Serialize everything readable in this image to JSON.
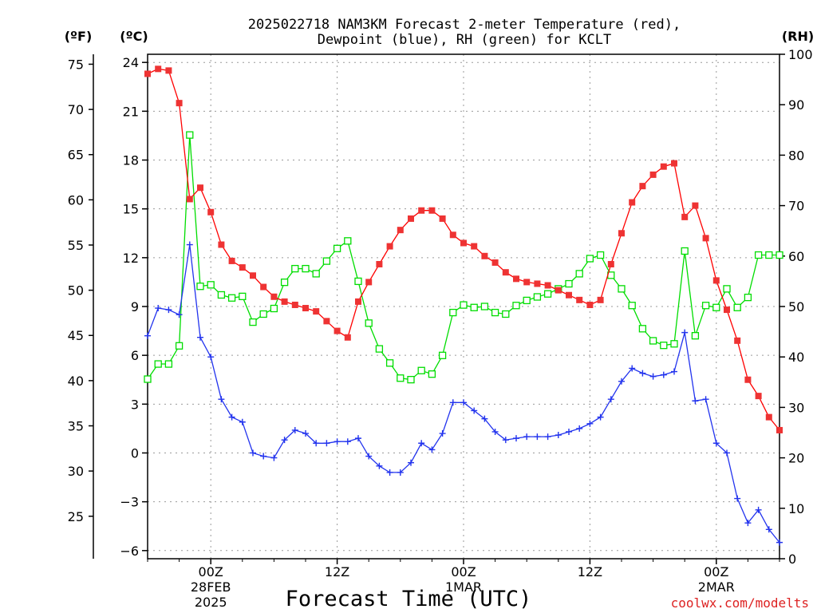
{
  "title": {
    "line1": "2025022718 NAM3KM Forecast 2-meter Temperature (red),",
    "line2": "Dewpoint (blue), RH (green) for KCLT"
  },
  "credit": "coolwx.com/modelts",
  "colors": {
    "temperature": "#ff0000",
    "temperature_marker": "#ee3333",
    "dewpoint": "#2233ee",
    "rh": "#00dd00",
    "credit": "#dd2222"
  },
  "chart_data": {
    "type": "line",
    "xlabel": "Forecast Time (UTC)",
    "x_range_hours": [
      0,
      60
    ],
    "x_ticks": [
      {
        "hour": 6,
        "label": "00Z",
        "sub1": "28FEB",
        "sub2": "2025"
      },
      {
        "hour": 18,
        "label": "12Z",
        "sub1": "",
        "sub2": ""
      },
      {
        "hour": 30,
        "label": "00Z",
        "sub1": "1MAR",
        "sub2": ""
      },
      {
        "hour": 42,
        "label": "12Z",
        "sub1": "",
        "sub2": ""
      },
      {
        "hour": 54,
        "label": "00Z",
        "sub1": "2MAR",
        "sub2": ""
      }
    ],
    "axes": {
      "fahrenheit": {
        "label": "(ºF)",
        "ticks": [
          25,
          30,
          35,
          40,
          45,
          50,
          55,
          60,
          65,
          70,
          75
        ]
      },
      "celsius": {
        "label": "(ºC)",
        "range": [
          -6.5,
          24.5
        ],
        "ticks": [
          -6,
          -3,
          0,
          3,
          6,
          9,
          12,
          15,
          18,
          21,
          24
        ]
      },
      "rh": {
        "label": "(RH)",
        "range": [
          0,
          100
        ],
        "ticks": [
          0,
          10,
          20,
          30,
          40,
          50,
          60,
          70,
          80,
          90,
          100
        ]
      }
    },
    "grid": true,
    "hours": [
      0,
      1,
      2,
      3,
      4,
      5,
      6,
      7,
      8,
      9,
      10,
      11,
      12,
      13,
      14,
      15,
      16,
      17,
      18,
      19,
      20,
      21,
      22,
      23,
      24,
      25,
      26,
      27,
      28,
      29,
      30,
      31,
      32,
      33,
      34,
      35,
      36,
      37,
      38,
      39,
      40,
      41,
      42,
      43,
      44,
      45,
      46,
      47,
      48,
      49,
      50,
      51,
      52,
      53,
      54,
      55,
      56,
      57,
      58,
      59,
      60
    ],
    "series": [
      {
        "key": "temperature",
        "axis": "celsius",
        "marker": "filled-square",
        "values": [
          23.3,
          23.6,
          23.5,
          21.5,
          15.6,
          16.3,
          14.8,
          12.8,
          11.8,
          11.4,
          10.9,
          10.2,
          9.6,
          9.3,
          9.1,
          8.9,
          8.7,
          8.1,
          7.5,
          7.1,
          9.3,
          10.5,
          11.6,
          12.7,
          13.7,
          14.4,
          14.9,
          14.9,
          14.4,
          13.4,
          12.9,
          12.7,
          12.1,
          11.7,
          11.1,
          10.7,
          10.5,
          10.4,
          10.3,
          10.0,
          9.7,
          9.4,
          9.1,
          9.4,
          11.6,
          13.5,
          15.4,
          16.4,
          17.1,
          17.6,
          17.8,
          14.5,
          15.2,
          13.2,
          10.6,
          8.8,
          6.9,
          4.5,
          3.5,
          2.2,
          1.4
        ]
      },
      {
        "key": "dewpoint",
        "axis": "celsius",
        "marker": "plus",
        "values": [
          7.2,
          8.9,
          8.8,
          8.5,
          12.8,
          7.1,
          5.9,
          3.3,
          2.2,
          1.9,
          0.0,
          -0.2,
          -0.3,
          0.8,
          1.4,
          1.2,
          0.6,
          0.6,
          0.7,
          0.7,
          0.9,
          -0.2,
          -0.8,
          -1.2,
          -1.2,
          -0.6,
          0.6,
          0.2,
          1.2,
          3.1,
          3.1,
          2.6,
          2.1,
          1.3,
          0.8,
          0.9,
          1.0,
          1.0,
          1.0,
          1.1,
          1.3,
          1.5,
          1.8,
          2.2,
          3.3,
          4.4,
          5.2,
          4.9,
          4.7,
          4.8,
          5.0,
          7.4,
          3.2,
          3.3,
          0.6,
          0.0,
          -2.8,
          -4.3,
          -3.5,
          -4.7,
          -5.5
        ]
      },
      {
        "key": "rh",
        "axis": "rh",
        "marker": "open-square",
        "values": [
          35.6,
          38.6,
          38.6,
          42.2,
          84.0,
          54.0,
          54.3,
          52.3,
          51.7,
          52.0,
          46.9,
          48.5,
          49.6,
          54.8,
          57.5,
          57.5,
          56.5,
          59.0,
          61.5,
          63.0,
          55.0,
          46.7,
          41.6,
          38.8,
          35.8,
          35.5,
          37.3,
          36.6,
          40.3,
          48.8,
          50.3,
          49.8,
          50.0,
          48.8,
          48.5,
          50.2,
          51.2,
          51.9,
          52.5,
          53.5,
          54.5,
          56.5,
          59.5,
          60.2,
          56.2,
          53.5,
          50.2,
          45.6,
          43.2,
          42.3,
          42.6,
          61.0,
          44.2,
          50.2,
          49.8,
          53.5,
          49.8,
          51.8,
          60.2,
          60.2,
          60.2
        ]
      }
    ]
  }
}
